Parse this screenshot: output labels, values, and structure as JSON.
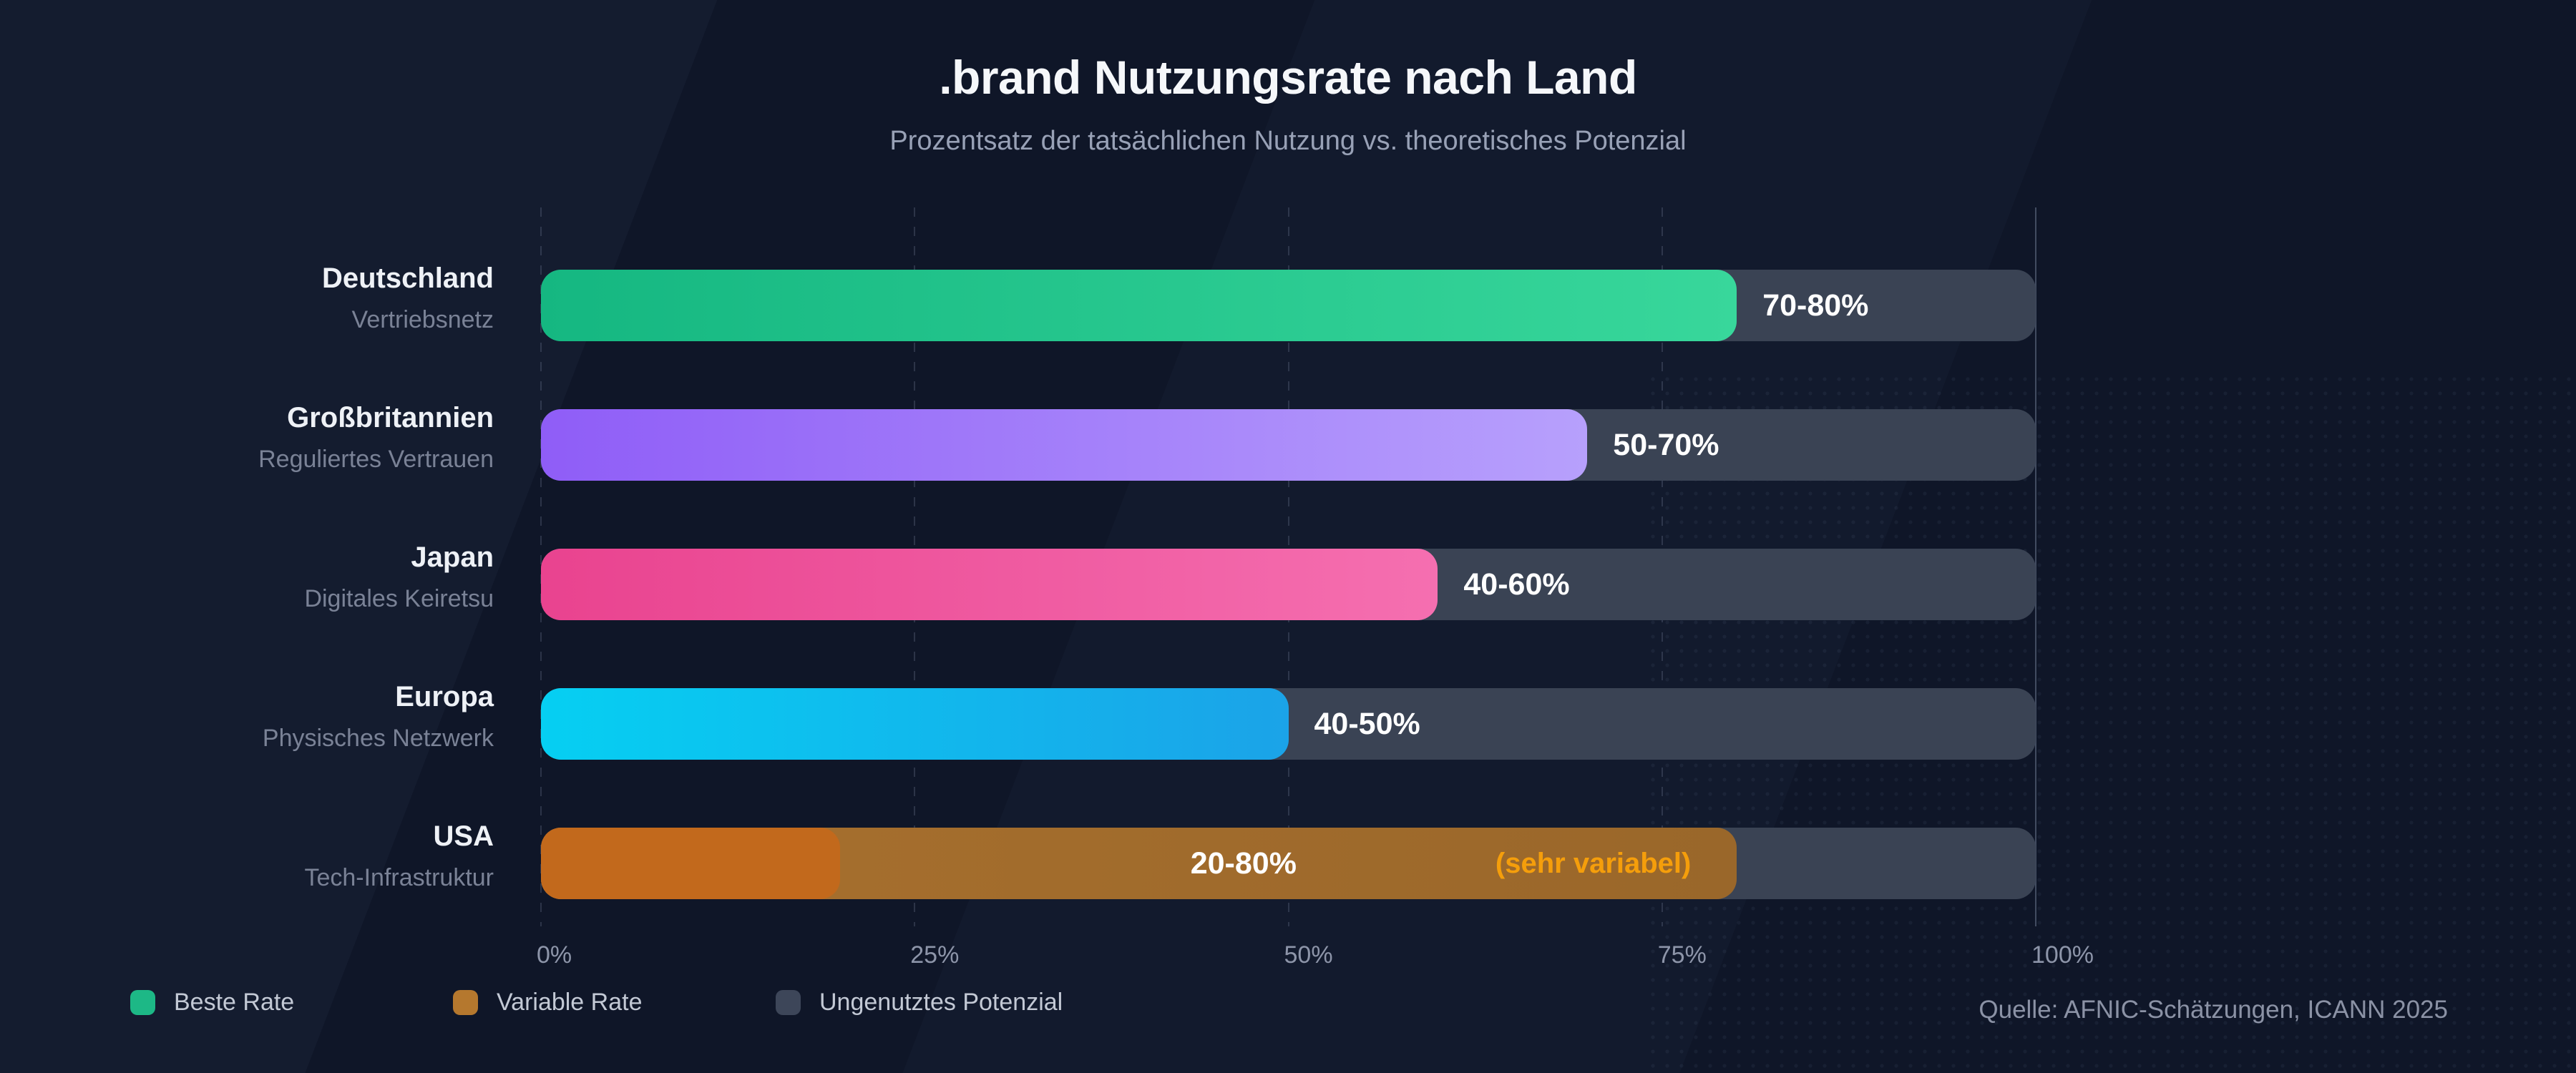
{
  "header": {
    "title": ".brand Nutzungsrate nach Land",
    "subtitle": "Prozentsatz der tatsächlichen Nutzung vs. theoretisches Potenzial"
  },
  "source": "Quelle: AFNIC-Schätzungen, ICANN 2025",
  "legend": {
    "items": [
      {
        "label": "Beste Rate",
        "color": "#1db886"
      },
      {
        "label": "Variable Rate",
        "color": "#b5782e"
      },
      {
        "label": "Ungenutztes Potenzial",
        "color": "#3d4659"
      }
    ]
  },
  "chart_data": {
    "type": "bar",
    "orientation": "horizontal",
    "title": ".brand Nutzungsrate nach Land",
    "subtitle": "Prozentsatz der tatsächlichen Nutzung vs. theoretisches Potenzial",
    "xlabel": "",
    "ylabel": "",
    "x_ticks": [
      "0%",
      "25%",
      "50%",
      "75%",
      "100%"
    ],
    "x_tick_values": [
      0,
      25,
      50,
      75,
      100
    ],
    "x_range": [
      0,
      100
    ],
    "grid": true,
    "legend_position": "bottom",
    "track_color": "#3a4354",
    "rows": [
      {
        "country": "Deutschland",
        "descriptor": "Vertriebsnetz",
        "value_label": "70-80%",
        "min": 70,
        "max": 80,
        "color_start": "#15b781",
        "color_end": "#38d79b"
      },
      {
        "country": "Großbritannien",
        "descriptor": "Reguliertes Vertrauen",
        "value_label": "50-70%",
        "min": 50,
        "max": 70,
        "color_start": "#8f5df7",
        "color_end": "#b7a0fc"
      },
      {
        "country": "Japan",
        "descriptor": "Digitales Keiretsu",
        "value_label": "40-60%",
        "min": 40,
        "max": 60,
        "color_start": "#e9438f",
        "color_end": "#f56fb0"
      },
      {
        "country": "Europa",
        "descriptor": "Physisches Netzwerk",
        "value_label": "40-50%",
        "min": 40,
        "max": 50,
        "color_start": "#06cff2",
        "color_end": "#1ba3e8"
      },
      {
        "country": "USA",
        "descriptor": "Tech-Infrastruktur",
        "value_label": "20-80%",
        "note": "(sehr variabel)",
        "note_color": "#f59e0b",
        "min": 20,
        "max": 80,
        "solid_max": 20,
        "color_start": "#a8702e",
        "color_end": "#9a672a",
        "solid_color": "#c2691c"
      }
    ]
  }
}
